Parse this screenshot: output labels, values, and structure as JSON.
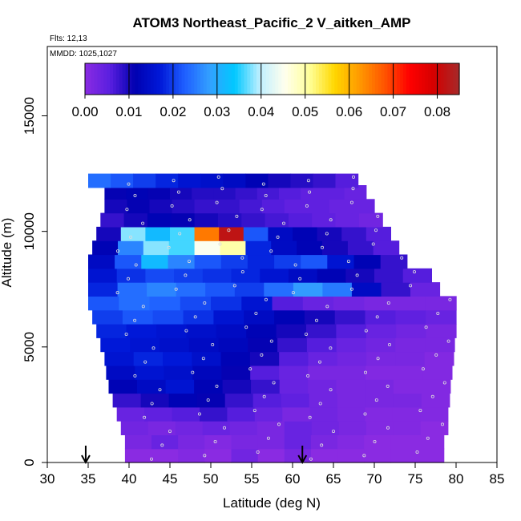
{
  "chart_data": {
    "type": "heatmap",
    "title": "ATOM3 Northeast_Pacific_2 V_aitken_AMP",
    "annotations": [
      "Flts: 12,13",
      "MMDD: 1025,1027"
    ],
    "xlabel": "Latitude (deg N)",
    "ylabel": "Altitude (m)",
    "xlim": [
      30,
      85
    ],
    "ylim": [
      0,
      18000
    ],
    "x_ticks": [
      "30",
      "35",
      "40",
      "45",
      "50",
      "55",
      "60",
      "65",
      "70",
      "75",
      "80",
      "85"
    ],
    "y_ticks": [
      "0",
      "5000",
      "10000",
      "15000"
    ],
    "colorbar": {
      "range": [
        0,
        0.085
      ],
      "ticks": [
        "0.00",
        "0.01",
        "0.02",
        "0.03",
        "0.04",
        "0.05",
        "0.06",
        "0.07",
        "0.08"
      ],
      "colors": [
        "#8a2be2",
        "#5a1fe0",
        "#0000b0",
        "#0018d8",
        "#1f5fff",
        "#33a0ff",
        "#00c8ff",
        "#bfefff",
        "#ffffee",
        "#ffff99",
        "#ffd700",
        "#ff9900",
        "#ff5500",
        "#ff0000",
        "#d40000",
        "#a52a2a"
      ]
    },
    "arrows_latitude": [
      34.7,
      61.2
    ],
    "bands": [
      {
        "alt": 300,
        "lat": [
          39.5,
          78.5
        ],
        "values": [
          0.0,
          0.0,
          0.001,
          0.0,
          0.003,
          0.0,
          0.002,
          0.0,
          0.0,
          0.0,
          0.0,
          0.0
        ]
      },
      {
        "alt": 900,
        "lat": [
          39.5,
          78.5
        ],
        "values": [
          0.002,
          0.004,
          0.002,
          0.001,
          0.002,
          0.002,
          0.004,
          0.002,
          0.001,
          0.0,
          0.0,
          0.0
        ]
      },
      {
        "alt": 1500,
        "lat": [
          39.0,
          79.0
        ],
        "values": [
          0.003,
          0.002,
          0.003,
          0.004,
          0.003,
          0.002,
          0.004,
          0.003,
          0.002,
          0.001,
          0.001,
          0.0
        ]
      },
      {
        "alt": 2100,
        "lat": [
          38.5,
          79.0
        ],
        "values": [
          0.004,
          0.005,
          0.006,
          0.008,
          0.006,
          0.004,
          0.002,
          0.003,
          0.002,
          0.001,
          0.001,
          0.001
        ]
      },
      {
        "alt": 2700,
        "lat": [
          38.0,
          79.2
        ],
        "values": [
          0.008,
          0.01,
          0.012,
          0.011,
          0.008,
          0.006,
          0.005,
          0.003,
          0.002,
          0.002,
          0.002,
          0.001
        ]
      },
      {
        "alt": 3300,
        "lat": [
          37.5,
          79.3
        ],
        "values": [
          0.012,
          0.014,
          0.016,
          0.012,
          0.01,
          0.008,
          0.004,
          0.003,
          0.002,
          0.002,
          0.001,
          0.001
        ]
      },
      {
        "alt": 3900,
        "lat": [
          37.2,
          79.5
        ],
        "values": [
          0.014,
          0.016,
          0.015,
          0.013,
          0.011,
          0.006,
          0.004,
          0.002,
          0.002,
          0.001,
          0.001,
          0.001
        ]
      },
      {
        "alt": 4500,
        "lat": [
          37.0,
          79.7
        ],
        "values": [
          0.016,
          0.018,
          0.017,
          0.015,
          0.012,
          0.01,
          0.006,
          0.004,
          0.003,
          0.002,
          0.002,
          0.001
        ]
      },
      {
        "alt": 5100,
        "lat": [
          36.5,
          79.8
        ],
        "values": [
          0.017,
          0.016,
          0.015,
          0.014,
          0.013,
          0.011,
          0.008,
          0.006,
          0.004,
          0.003,
          0.002,
          0.002
        ]
      },
      {
        "alt": 5700,
        "lat": [
          36.0,
          80.0
        ],
        "values": [
          0.018,
          0.017,
          0.016,
          0.015,
          0.014,
          0.012,
          0.01,
          0.008,
          0.006,
          0.004,
          0.003,
          0.002
        ]
      },
      {
        "alt": 6300,
        "lat": [
          35.5,
          80.0
        ],
        "values": [
          0.02,
          0.022,
          0.021,
          0.019,
          0.016,
          0.014,
          0.012,
          0.01,
          0.008,
          0.006,
          0.005,
          0.004
        ]
      },
      {
        "alt": 6900,
        "lat": [
          35.0,
          80.0
        ],
        "values": [
          0.022,
          0.024,
          0.023,
          0.021,
          0.019,
          0.016,
          0.006,
          0.004,
          0.003,
          0.002,
          0.002,
          0.002
        ]
      },
      {
        "alt": 7500,
        "lat": [
          35.0,
          78.0
        ],
        "values": [
          0.018,
          0.024,
          0.026,
          0.024,
          0.022,
          0.02,
          0.024,
          0.028,
          0.025,
          0.014,
          0.008,
          0.004
        ]
      },
      {
        "alt": 8100,
        "lat": [
          35.0,
          77.0
        ],
        "values": [
          0.016,
          0.019,
          0.021,
          0.02,
          0.019,
          0.018,
          0.016,
          0.014,
          0.012,
          0.01,
          0.008,
          0.006
        ]
      },
      {
        "alt": 8700,
        "lat": [
          35.0,
          74.0
        ],
        "values": [
          0.014,
          0.022,
          0.032,
          0.026,
          0.022,
          0.02,
          0.018,
          0.02,
          0.022,
          0.016,
          0.012,
          0.008
        ]
      },
      {
        "alt": 9300,
        "lat": [
          35.5,
          73.0
        ],
        "values": [
          0.012,
          0.026,
          0.038,
          0.036,
          0.045,
          0.05,
          0.018,
          0.014,
          0.012,
          0.01,
          0.008,
          0.006
        ]
      },
      {
        "alt": 9900,
        "lat": [
          36.0,
          72.0
        ],
        "values": [
          0.01,
          0.038,
          0.032,
          0.036,
          0.065,
          0.082,
          0.022,
          0.014,
          0.012,
          0.01,
          0.008,
          0.006
        ]
      },
      {
        "alt": 10500,
        "lat": [
          36.5,
          71.0
        ],
        "values": [
          0.008,
          0.01,
          0.012,
          0.011,
          0.01,
          0.009,
          0.008,
          0.007,
          0.006,
          0.005,
          0.004,
          0.003
        ]
      },
      {
        "alt": 11100,
        "lat": [
          37.0,
          70.0
        ],
        "values": [
          0.01,
          0.011,
          0.01,
          0.009,
          0.008,
          0.008,
          0.007,
          0.006,
          0.005,
          0.005,
          0.004,
          0.004
        ]
      },
      {
        "alt": 11700,
        "lat": [
          37.0,
          69.0
        ],
        "values": [
          0.011,
          0.012,
          0.011,
          0.01,
          0.009,
          0.009,
          0.008,
          0.007,
          0.006,
          0.005,
          0.005,
          0.004
        ]
      },
      {
        "alt": 12200,
        "lat": [
          35.0,
          68.0
        ],
        "values": [
          0.024,
          0.022,
          0.02,
          0.018,
          0.016,
          0.015,
          0.014,
          0.012,
          0.01,
          0.009,
          0.008,
          0.006
        ]
      }
    ]
  }
}
